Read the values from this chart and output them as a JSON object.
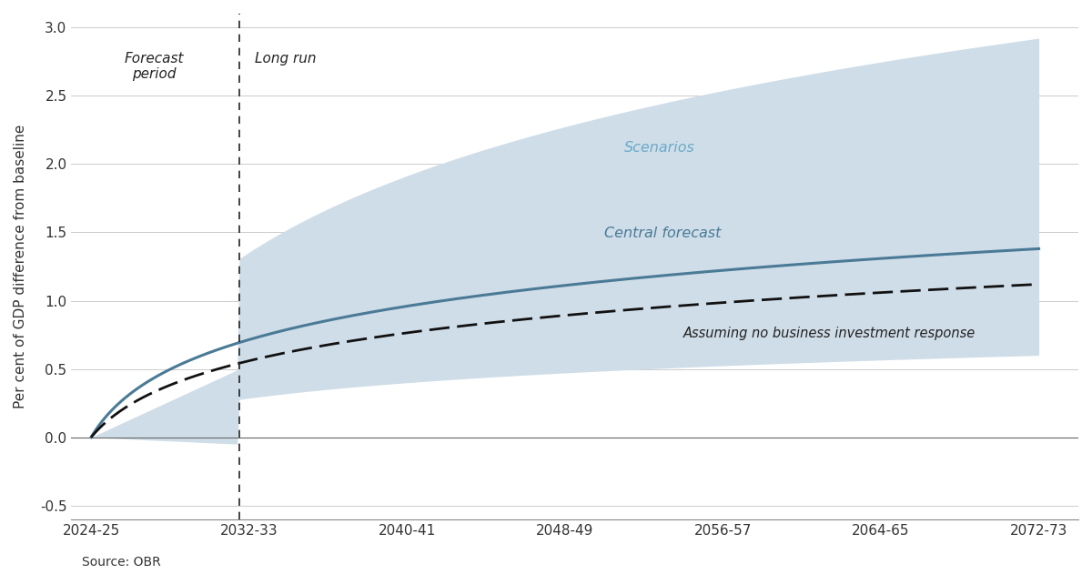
{
  "title": "",
  "ylabel": "Per cent of GDP difference from baseline",
  "source": "Source: OBR",
  "x_tick_labels": [
    "2024-25",
    "2032-33",
    "2040-41",
    "2048-49",
    "2056-57",
    "2064-65",
    "2072-73"
  ],
  "x_tick_positions": [
    0,
    8,
    16,
    24,
    32,
    40,
    48
  ],
  "ylim": [
    -0.6,
    3.1
  ],
  "yticks": [
    -0.5,
    0.0,
    0.5,
    1.0,
    1.5,
    2.0,
    2.5,
    3.0
  ],
  "vline_x": 7.5,
  "forecast_period_label": "Forecast\nperiod",
  "long_run_label": "Long run",
  "scenarios_label": "Scenarios",
  "central_forecast_label": "Central forecast",
  "no_biz_label": "Assuming no business investment response",
  "background_color": "#ffffff",
  "fill_color": "#cfdde8",
  "central_line_color": "#4a7a96",
  "dashed_line_color": "#111111",
  "label_color_scenarios": "#6aaac8",
  "label_color_central": "#4a7a96",
  "central_final": 1.38,
  "dashed_final": 1.12,
  "upper_final": 2.92,
  "lower_final": 0.6
}
